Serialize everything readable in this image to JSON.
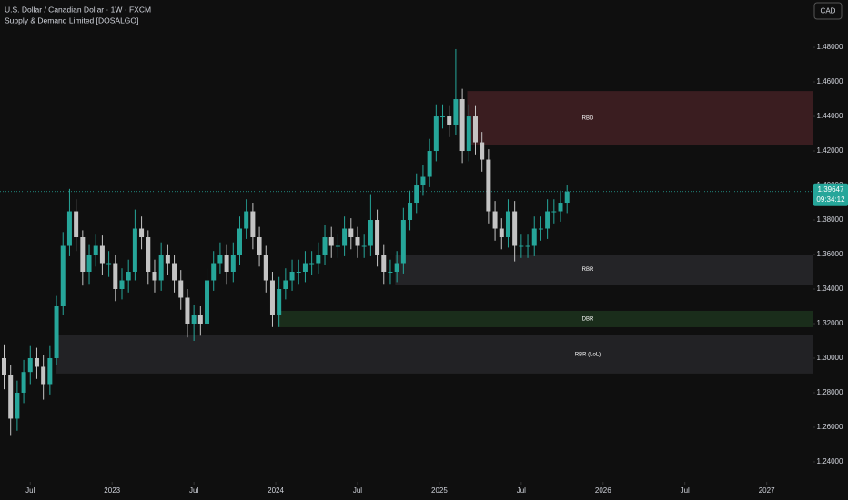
{
  "chart_data": {
    "type": "candlestick",
    "title": "U.S. Dollar / Canadian Dollar · 1W · FXCM",
    "subtitle": "Supply & Demand Limited [DOSALGO]",
    "currency": "CAD",
    "up_color": "#26a69a",
    "down_color": "#c4c4c4",
    "x": [
      2022.34,
      2022.38,
      2022.42,
      2022.46,
      2022.5,
      2022.54,
      2022.58,
      2022.62,
      2022.66,
      2022.7,
      2022.74,
      2022.78,
      2022.82,
      2022.86,
      2022.9,
      2022.94,
      2022.98,
      2023.02,
      2023.06,
      2023.1,
      2023.14,
      2023.18,
      2023.22,
      2023.26,
      2023.3,
      2023.34,
      2023.38,
      2023.42,
      2023.46,
      2023.5,
      2023.54,
      2023.58,
      2023.62,
      2023.66,
      2023.7,
      2023.74,
      2023.78,
      2023.82,
      2023.86,
      2023.9,
      2023.94,
      2023.98,
      2024.02,
      2024.06,
      2024.1,
      2024.14,
      2024.18,
      2024.22,
      2024.26,
      2024.3,
      2024.34,
      2024.38,
      2024.42,
      2024.46,
      2024.5,
      2024.54,
      2024.58,
      2024.62,
      2024.66,
      2024.7,
      2024.74,
      2024.78,
      2024.82,
      2024.86,
      2024.9,
      2024.94,
      2024.98,
      2025.02,
      2025.06,
      2025.1,
      2025.14,
      2025.18,
      2025.22,
      2025.26,
      2025.3,
      2025.34,
      2025.38,
      2025.42,
      2025.46,
      2025.5,
      2025.54,
      2025.58,
      2025.62,
      2025.66,
      2025.7,
      2025.74,
      2025.78
    ],
    "open": [
      1.3,
      1.29,
      1.265,
      1.28,
      1.292,
      1.3,
      1.295,
      1.285,
      1.3,
      1.33,
      1.365,
      1.385,
      1.37,
      1.35,
      1.36,
      1.365,
      1.355,
      1.355,
      1.34,
      1.345,
      1.35,
      1.375,
      1.37,
      1.35,
      1.345,
      1.36,
      1.355,
      1.345,
      1.335,
      1.32,
      1.325,
      1.32,
      1.345,
      1.355,
      1.36,
      1.35,
      1.36,
      1.375,
      1.385,
      1.37,
      1.36,
      1.345,
      1.325,
      1.34,
      1.345,
      1.35,
      1.35,
      1.355,
      1.355,
      1.36,
      1.37,
      1.365,
      1.365,
      1.375,
      1.37,
      1.365,
      1.365,
      1.38,
      1.36,
      1.35,
      1.35,
      1.355,
      1.38,
      1.39,
      1.4,
      1.405,
      1.42,
      1.44,
      1.44,
      1.435,
      1.45,
      1.42,
      1.44,
      1.425,
      1.415,
      1.385,
      1.375,
      1.37,
      1.385,
      1.365,
      1.365,
      1.365,
      1.375,
      1.375,
      1.385,
      1.385,
      1.39
    ],
    "high": [
      1.308,
      1.296,
      1.287,
      1.299,
      1.307,
      1.306,
      1.302,
      1.307,
      1.336,
      1.373,
      1.398,
      1.392,
      1.374,
      1.366,
      1.372,
      1.371,
      1.362,
      1.36,
      1.352,
      1.357,
      1.386,
      1.382,
      1.374,
      1.357,
      1.367,
      1.366,
      1.36,
      1.351,
      1.34,
      1.331,
      1.33,
      1.352,
      1.362,
      1.367,
      1.366,
      1.367,
      1.382,
      1.392,
      1.39,
      1.376,
      1.365,
      1.35,
      1.347,
      1.352,
      1.357,
      1.357,
      1.362,
      1.362,
      1.367,
      1.377,
      1.376,
      1.372,
      1.382,
      1.381,
      1.376,
      1.372,
      1.395,
      1.386,
      1.366,
      1.357,
      1.362,
      1.387,
      1.397,
      1.407,
      1.412,
      1.427,
      1.447,
      1.447,
      1.446,
      1.479,
      1.456,
      1.447,
      1.446,
      1.431,
      1.421,
      1.391,
      1.381,
      1.392,
      1.391,
      1.372,
      1.372,
      1.382,
      1.382,
      1.392,
      1.392,
      1.397,
      1.4
    ],
    "low": [
      1.282,
      1.255,
      1.258,
      1.274,
      1.285,
      1.288,
      1.276,
      1.279,
      1.296,
      1.325,
      1.359,
      1.362,
      1.342,
      1.343,
      1.353,
      1.348,
      1.347,
      1.333,
      1.334,
      1.338,
      1.345,
      1.363,
      1.343,
      1.338,
      1.339,
      1.348,
      1.338,
      1.328,
      1.312,
      1.31,
      1.313,
      1.316,
      1.339,
      1.349,
      1.343,
      1.344,
      1.354,
      1.369,
      1.363,
      1.353,
      1.338,
      1.318,
      1.318,
      1.334,
      1.339,
      1.343,
      1.344,
      1.348,
      1.349,
      1.354,
      1.358,
      1.358,
      1.359,
      1.363,
      1.358,
      1.358,
      1.359,
      1.353,
      1.343,
      1.343,
      1.344,
      1.349,
      1.374,
      1.384,
      1.394,
      1.399,
      1.414,
      1.433,
      1.428,
      1.429,
      1.413,
      1.414,
      1.418,
      1.408,
      1.378,
      1.368,
      1.363,
      1.364,
      1.356,
      1.358,
      1.358,
      1.359,
      1.368,
      1.369,
      1.378,
      1.379,
      1.384
    ],
    "close": [
      1.29,
      1.265,
      1.28,
      1.292,
      1.3,
      1.295,
      1.285,
      1.3,
      1.33,
      1.365,
      1.385,
      1.37,
      1.35,
      1.36,
      1.365,
      1.355,
      1.355,
      1.34,
      1.345,
      1.35,
      1.375,
      1.37,
      1.35,
      1.345,
      1.36,
      1.355,
      1.345,
      1.335,
      1.32,
      1.325,
      1.32,
      1.345,
      1.355,
      1.36,
      1.35,
      1.36,
      1.375,
      1.385,
      1.37,
      1.36,
      1.345,
      1.325,
      1.34,
      1.345,
      1.35,
      1.35,
      1.355,
      1.355,
      1.36,
      1.37,
      1.365,
      1.365,
      1.375,
      1.37,
      1.365,
      1.365,
      1.38,
      1.36,
      1.35,
      1.35,
      1.355,
      1.38,
      1.39,
      1.4,
      1.405,
      1.42,
      1.44,
      1.44,
      1.435,
      1.45,
      1.42,
      1.44,
      1.425,
      1.415,
      1.385,
      1.375,
      1.37,
      1.385,
      1.365,
      1.365,
      1.365,
      1.375,
      1.375,
      1.385,
      1.385,
      1.39,
      1.39647
    ],
    "xlim": [
      2022.315,
      2027.28
    ],
    "xticks": [
      {
        "value": 2022.5,
        "label": "Jul"
      },
      2023,
      {
        "value": 2023.5,
        "label": "Jul"
      },
      2024,
      {
        "value": 2024.5,
        "label": "Jul"
      },
      2025,
      {
        "value": 2025.5,
        "label": "Jul"
      },
      2026,
      {
        "value": 2026.5,
        "label": "Jul"
      },
      2027
    ],
    "ylim": [
      1.2284,
      1.5074
    ],
    "yticks": [
      {
        "value": 1.24,
        "label": "1.24000"
      },
      {
        "value": 1.26,
        "label": "1.26000"
      },
      {
        "value": 1.28,
        "label": "1.28000"
      },
      {
        "value": 1.3,
        "label": "1.30000"
      },
      {
        "value": 1.32,
        "label": "1.32000"
      },
      {
        "value": 1.34,
        "label": "1.34000"
      },
      {
        "value": 1.36,
        "label": "1.36000"
      },
      {
        "value": 1.38,
        "label": "1.38000"
      },
      {
        "value": 1.4,
        "label": "1.40000"
      },
      {
        "value": 1.42,
        "label": "1.42000"
      },
      {
        "value": 1.44,
        "label": "1.44000"
      },
      {
        "value": 1.46,
        "label": "1.46000"
      },
      {
        "value": 1.48,
        "label": "1.48000"
      }
    ],
    "zones": [
      {
        "label": "RBD",
        "start": 2025.17,
        "top": 1.4547,
        "bottom": 1.4232,
        "color": "#3a1d20"
      },
      {
        "label": "RBR",
        "start": 2024.73,
        "top": 1.36,
        "bottom": 1.3426,
        "color": "#242427"
      },
      {
        "label": "DBR",
        "start": 2024.01,
        "top": 1.3274,
        "bottom": 1.3179,
        "color": "#1a2d1b"
      },
      {
        "label": "RBR (LoL)",
        "start": 2022.66,
        "top": 1.3132,
        "bottom": 1.2911,
        "color": "#222225"
      }
    ],
    "last_price": {
      "value": 1.39647,
      "countdown": "09:34:12"
    }
  }
}
